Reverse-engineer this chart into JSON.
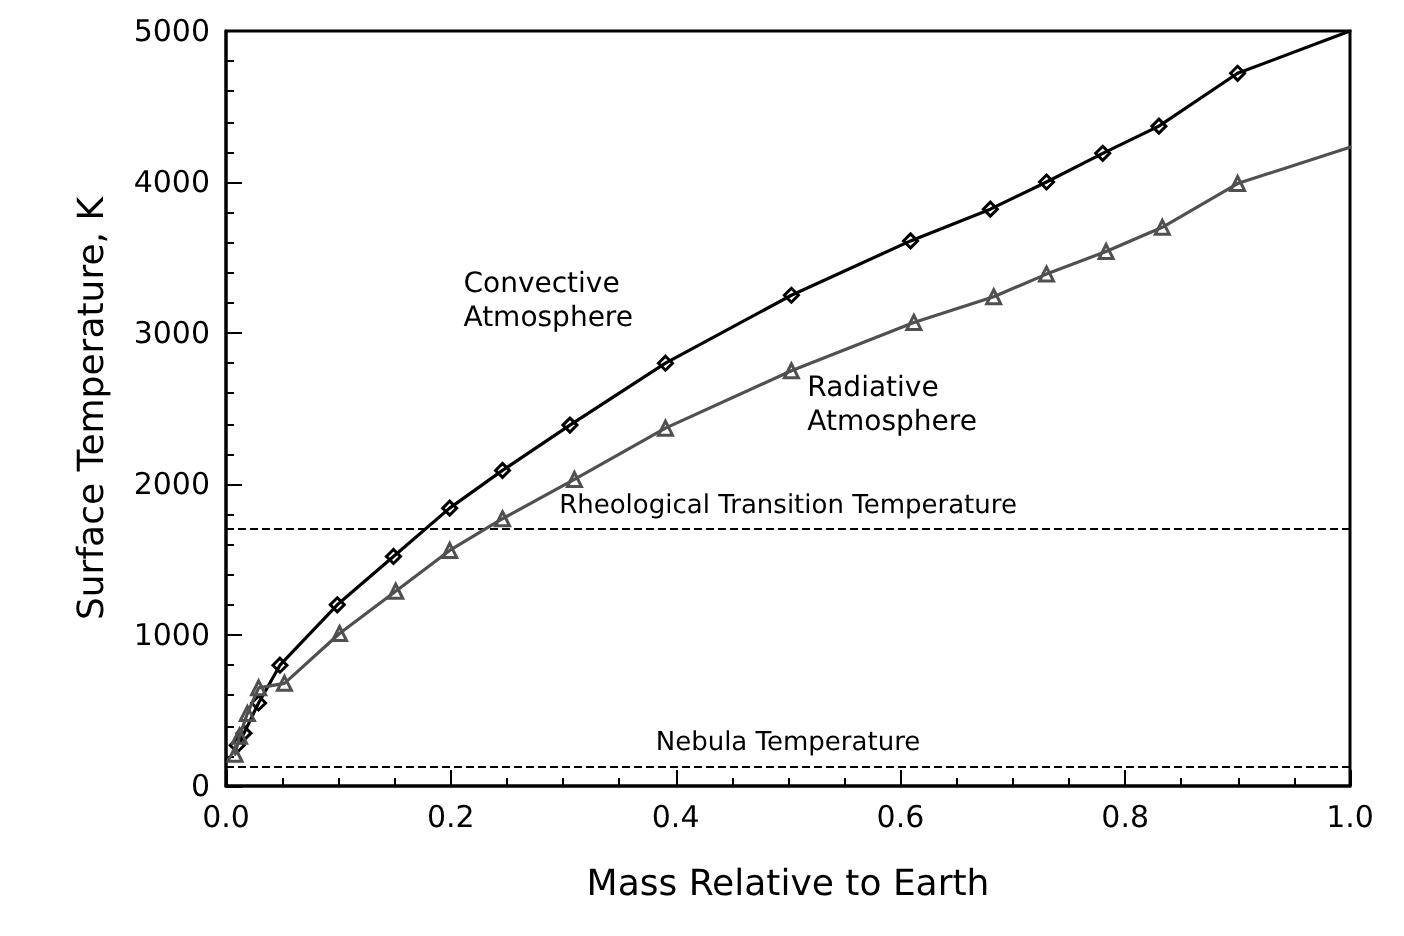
{
  "chart_data": {
    "type": "line",
    "xlabel": "Mass Relative to Earth",
    "ylabel": "Surface Temperature, K",
    "xlim": [
      0,
      1
    ],
    "xticks": [
      {
        "value": 0,
        "label": "0.0"
      },
      {
        "value": 0.2,
        "label": "0.2"
      },
      {
        "value": 0.4,
        "label": "0.4"
      },
      {
        "value": 0.6,
        "label": "0.6"
      },
      {
        "value": 0.8,
        "label": "0.8"
      },
      {
        "value": 1,
        "label": "1.0"
      }
    ],
    "ylim": [
      0,
      5000
    ],
    "yticks": [
      0,
      1000,
      2000,
      3000,
      4000,
      5000
    ],
    "grid": false,
    "legend": false,
    "line_style": "solid",
    "series": [
      {
        "name": "Convective\nAtmosphere",
        "color": "#000000",
        "marker": "diamond",
        "x": [
          0.01,
          0.016,
          0.029,
          0.048,
          0.099,
          0.149,
          0.199,
          0.246,
          0.306,
          0.391,
          0.503,
          0.609,
          0.68,
          0.73,
          0.78,
          0.83,
          0.9
        ],
        "values": [
          270,
          350,
          550,
          800,
          1200,
          1520,
          1840,
          2090,
          2390,
          2800,
          3250,
          3610,
          3820,
          4000,
          4190,
          4370,
          4720
        ]
      },
      {
        "color": "#000000",
        "marker": "none",
        "x": [
          0.9,
          1
        ],
        "values": [
          4720,
          5000
        ]
      },
      {
        "name": "Radiative\nAtmosphere",
        "color": "#505050",
        "marker": "triangle",
        "x": [
          0.008,
          0.012,
          0.019,
          0.029,
          0.052,
          0.101,
          0.151,
          0.199,
          0.246,
          0.31,
          0.391,
          0.503,
          0.612,
          0.683,
          0.73,
          0.783,
          0.833,
          0.9
        ],
        "values": [
          210,
          330,
          480,
          650,
          680,
          1010,
          1290,
          1560,
          1770,
          2030,
          2370,
          2750,
          3070,
          3240,
          3390,
          3540,
          3700,
          3990
        ]
      },
      {
        "color": "#505050",
        "marker": "none",
        "x": [
          0.9,
          1
        ],
        "values": [
          3990,
          4230
        ]
      }
    ],
    "ref_lines": [
      {
        "axis": "y",
        "value": 1700,
        "label": "Rheological Transition Temperature",
        "line_style": "dashed",
        "color": "#000000"
      },
      {
        "axis": "y",
        "value": 130,
        "label": "Nebula Temperature",
        "line_style": "dashed",
        "color": "#000000"
      }
    ]
  }
}
